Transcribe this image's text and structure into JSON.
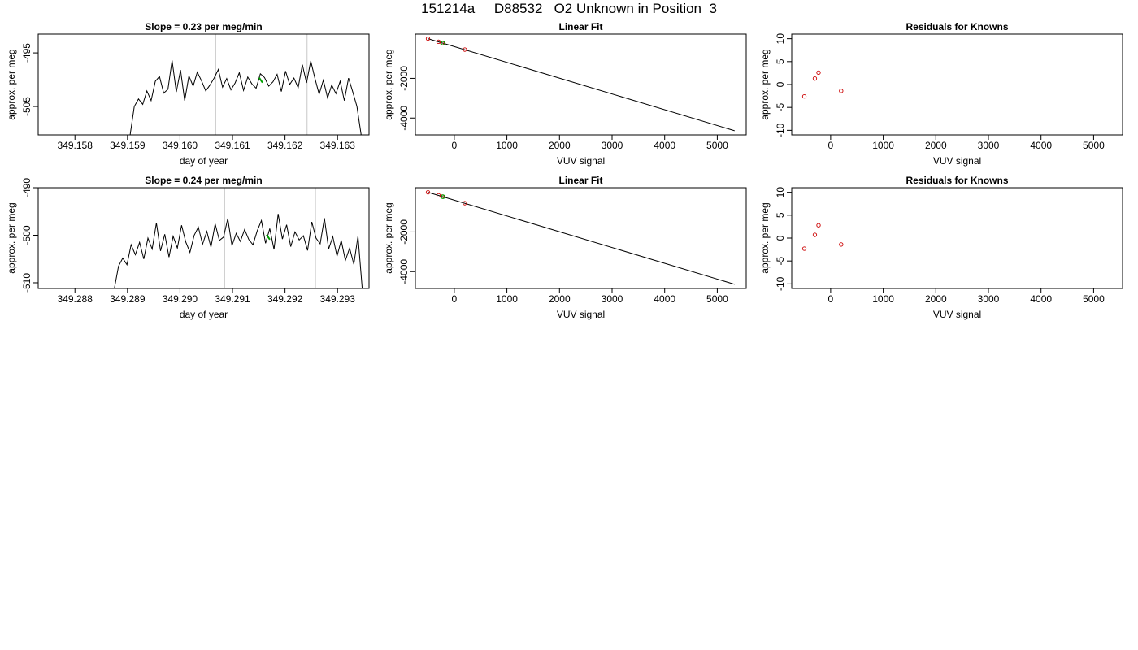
{
  "figure": {
    "title": "151214a     D88532   O2 Unknown in Position  3"
  },
  "chart_data": [
    {
      "type": "line",
      "title": "Slope =  0.23  per meg/min",
      "xlabel": "day of year",
      "ylabel": "approx. per meg",
      "xlim": [
        349.1573,
        349.1636
      ],
      "ylim": [
        -510.3,
        -491.5
      ],
      "xticks": [
        "349.158",
        "349.159",
        "349.160",
        "349.161",
        "349.162",
        "349.163"
      ],
      "xtick_values": [
        349.158,
        349.159,
        349.16,
        349.161,
        349.162,
        349.163
      ],
      "yticks": [
        "-495",
        "-505"
      ],
      "ytick_values": [
        -495,
        -505
      ],
      "vlines": [
        349.16068,
        349.16242
      ],
      "series": [
        {
          "color": "#000000",
          "x": [
            349.15905,
            349.15913,
            349.15921,
            349.15929,
            349.15937,
            349.15945,
            349.15953,
            349.15961,
            349.15969,
            349.15977,
            349.15985,
            349.15993,
            349.16001,
            349.16009,
            349.16017,
            349.16025,
            349.16033,
            349.16041,
            349.16049,
            349.16057,
            349.16065,
            349.16073,
            349.16081,
            349.16089,
            349.16097,
            349.16105,
            349.16113,
            349.16121,
            349.16129,
            349.16137,
            349.16145,
            349.16153,
            349.16161,
            349.16169,
            349.16177,
            349.16185,
            349.16193,
            349.16201,
            349.16209,
            349.16217,
            349.16225,
            349.16233,
            349.16241,
            349.16249,
            349.16257,
            349.16265,
            349.16273,
            349.16281,
            349.16289,
            349.16297,
            349.16305,
            349.16313,
            349.16321,
            349.16329,
            349.16337,
            349.16345
          ],
          "y": [
            -510.3,
            -505.0,
            -503.6,
            -504.6,
            -502.1,
            -503.9,
            -500.3,
            -499.4,
            -502.5,
            -501.8,
            -496.4,
            -502.3,
            -498.2,
            -503.9,
            -499.3,
            -501.2,
            -498.6,
            -500.2,
            -502.1,
            -501.0,
            -499.7,
            -498.1,
            -501.4,
            -499.8,
            -501.9,
            -500.6,
            -498.7,
            -502.0,
            -499.5,
            -500.8,
            -501.6,
            -498.9,
            -499.6,
            -501.2,
            -500.4,
            -499.0,
            -502.2,
            -498.4,
            -500.9,
            -499.7,
            -501.5,
            -497.2,
            -500.6,
            -496.5,
            -499.8,
            -502.7,
            -500.1,
            -503.4,
            -501.0,
            -502.6,
            -500.3,
            -503.9,
            -499.7,
            -502.3,
            -505.0,
            -510.3
          ]
        }
      ],
      "highlight_points": [
        {
          "x": 349.16154,
          "y": -500.1,
          "color": "#00a000"
        }
      ]
    },
    {
      "type": "scatter",
      "title": "Linear Fit",
      "xlabel": "VUV signal",
      "ylabel": "approx. per meg",
      "xlim": [
        -740,
        5550
      ],
      "ylim": [
        -4850,
        230
      ],
      "xticks": [
        "0",
        "1000",
        "2000",
        "3000",
        "4000",
        "5000"
      ],
      "xtick_values": [
        0,
        1000,
        2000,
        3000,
        4000,
        5000
      ],
      "yticks": [
        "-2000",
        "-4000"
      ],
      "ytick_values": [
        -2000,
        -4000
      ],
      "fit_line": {
        "x": [
          -500,
          5330
        ],
        "y": [
          0,
          -4640
        ],
        "color": "#000000"
      },
      "points": [
        {
          "x": -500,
          "y": -2,
          "color": "#cc0000"
        },
        {
          "x": -300,
          "y": -155,
          "color": "#cc0000"
        },
        {
          "x": -230,
          "y": -215,
          "color": "#cc0000"
        },
        {
          "x": 200,
          "y": -550,
          "color": "#cc0000"
        }
      ],
      "unknown_points": [
        {
          "x": -215,
          "y": -225,
          "color": "#00a000"
        }
      ]
    },
    {
      "type": "scatter",
      "title": "Residuals for Knowns",
      "xlabel": "VUV signal",
      "ylabel": "approx. per meg",
      "xlim": [
        -740,
        5550
      ],
      "ylim": [
        -11,
        11
      ],
      "xticks": [
        "0",
        "1000",
        "2000",
        "3000",
        "4000",
        "5000"
      ],
      "xtick_values": [
        0,
        1000,
        2000,
        3000,
        4000,
        5000
      ],
      "yticks": [
        "10",
        "5",
        "0",
        "-5",
        "-10"
      ],
      "ytick_values": [
        10,
        5,
        0,
        -5,
        -10
      ],
      "points": [
        {
          "x": -500,
          "y": -2.6,
          "color": "#cc0000"
        },
        {
          "x": -300,
          "y": 1.3,
          "color": "#cc0000"
        },
        {
          "x": -230,
          "y": 2.6,
          "color": "#cc0000"
        },
        {
          "x": 200,
          "y": -1.4,
          "color": "#cc0000"
        }
      ]
    },
    {
      "type": "line",
      "title": "Slope =  0.24  per meg/min",
      "xlabel": "day of year",
      "ylabel": "approx. per meg",
      "xlim": [
        349.2873,
        349.2936
      ],
      "ylim": [
        -511.2,
        -490.0
      ],
      "xticks": [
        "349.288",
        "349.289",
        "349.290",
        "349.291",
        "349.292",
        "349.293"
      ],
      "xtick_values": [
        349.288,
        349.289,
        349.29,
        349.291,
        349.292,
        349.293
      ],
      "yticks": [
        "-490",
        "-500",
        "-510"
      ],
      "ytick_values": [
        -490,
        -500,
        -510
      ],
      "vlines": [
        349.29085,
        349.29258
      ],
      "series": [
        {
          "color": "#000000",
          "x": [
            349.28875,
            349.28883,
            349.28891,
            349.28899,
            349.28907,
            349.28915,
            349.28923,
            349.28931,
            349.28939,
            349.28947,
            349.28955,
            349.28963,
            349.28971,
            349.28979,
            349.28987,
            349.28995,
            349.29003,
            349.29011,
            349.29019,
            349.29027,
            349.29035,
            349.29043,
            349.29051,
            349.29059,
            349.29067,
            349.29075,
            349.29083,
            349.29091,
            349.29099,
            349.29107,
            349.29115,
            349.29123,
            349.29131,
            349.29139,
            349.29147,
            349.29155,
            349.29163,
            349.29171,
            349.29179,
            349.29187,
            349.29195,
            349.29203,
            349.29211,
            349.29219,
            349.29227,
            349.29235,
            349.29243,
            349.29251,
            349.29259,
            349.29267,
            349.29275,
            349.29283,
            349.29291,
            349.29299,
            349.29307,
            349.29315,
            349.29323,
            349.29331,
            349.29339,
            349.29347
          ],
          "y": [
            -511.2,
            -506.5,
            -504.8,
            -506.2,
            -502.0,
            -504.1,
            -501.5,
            -505.0,
            -500.6,
            -502.9,
            -497.4,
            -503.3,
            -499.8,
            -504.6,
            -500.2,
            -502.7,
            -497.9,
            -501.4,
            -503.6,
            -500.0,
            -498.3,
            -501.9,
            -499.2,
            -502.5,
            -497.6,
            -501.1,
            -500.4,
            -496.5,
            -502.2,
            -499.6,
            -501.3,
            -498.8,
            -500.9,
            -502.0,
            -499.1,
            -496.9,
            -501.7,
            -498.6,
            -503.0,
            -495.5,
            -500.8,
            -497.8,
            -502.4,
            -499.3,
            -501.0,
            -500.1,
            -503.2,
            -497.2,
            -500.6,
            -501.8,
            -496.4,
            -502.9,
            -500.3,
            -504.4,
            -501.1,
            -505.3,
            -502.7,
            -506.1,
            -500.2,
            -511.2
          ]
        }
      ],
      "highlight_points": [
        {
          "x": 349.29168,
          "y": -500.4,
          "color": "#00a000"
        }
      ]
    },
    {
      "type": "scatter",
      "title": "Linear Fit",
      "xlabel": "VUV signal",
      "ylabel": "approx. per meg",
      "xlim": [
        -740,
        5550
      ],
      "ylim": [
        -4850,
        230
      ],
      "xticks": [
        "0",
        "1000",
        "2000",
        "3000",
        "4000",
        "5000"
      ],
      "xtick_values": [
        0,
        1000,
        2000,
        3000,
        4000,
        5000
      ],
      "yticks": [
        "-2000",
        "-4000"
      ],
      "ytick_values": [
        -2000,
        -4000
      ],
      "fit_line": {
        "x": [
          -500,
          5330
        ],
        "y": [
          0,
          -4640
        ],
        "color": "#000000"
      },
      "points": [
        {
          "x": -500,
          "y": -2,
          "color": "#cc0000"
        },
        {
          "x": -300,
          "y": -155,
          "color": "#cc0000"
        },
        {
          "x": -230,
          "y": -215,
          "color": "#cc0000"
        },
        {
          "x": 200,
          "y": -550,
          "color": "#cc0000"
        }
      ],
      "unknown_points": [
        {
          "x": -215,
          "y": -225,
          "color": "#00a000"
        }
      ]
    },
    {
      "type": "scatter",
      "title": "Residuals for Knowns",
      "xlabel": "VUV signal",
      "ylabel": "approx. per meg",
      "xlim": [
        -740,
        5550
      ],
      "ylim": [
        -11,
        11
      ],
      "xticks": [
        "0",
        "1000",
        "2000",
        "3000",
        "4000",
        "5000"
      ],
      "xtick_values": [
        0,
        1000,
        2000,
        3000,
        4000,
        5000
      ],
      "yticks": [
        "10",
        "5",
        "0",
        "-5",
        "-10"
      ],
      "ytick_values": [
        10,
        5,
        0,
        -5,
        -10
      ],
      "points": [
        {
          "x": -500,
          "y": -2.3,
          "color": "#cc0000"
        },
        {
          "x": -300,
          "y": 0.7,
          "color": "#cc0000"
        },
        {
          "x": -230,
          "y": 2.8,
          "color": "#cc0000"
        },
        {
          "x": 200,
          "y": -1.4,
          "color": "#cc0000"
        }
      ]
    }
  ]
}
